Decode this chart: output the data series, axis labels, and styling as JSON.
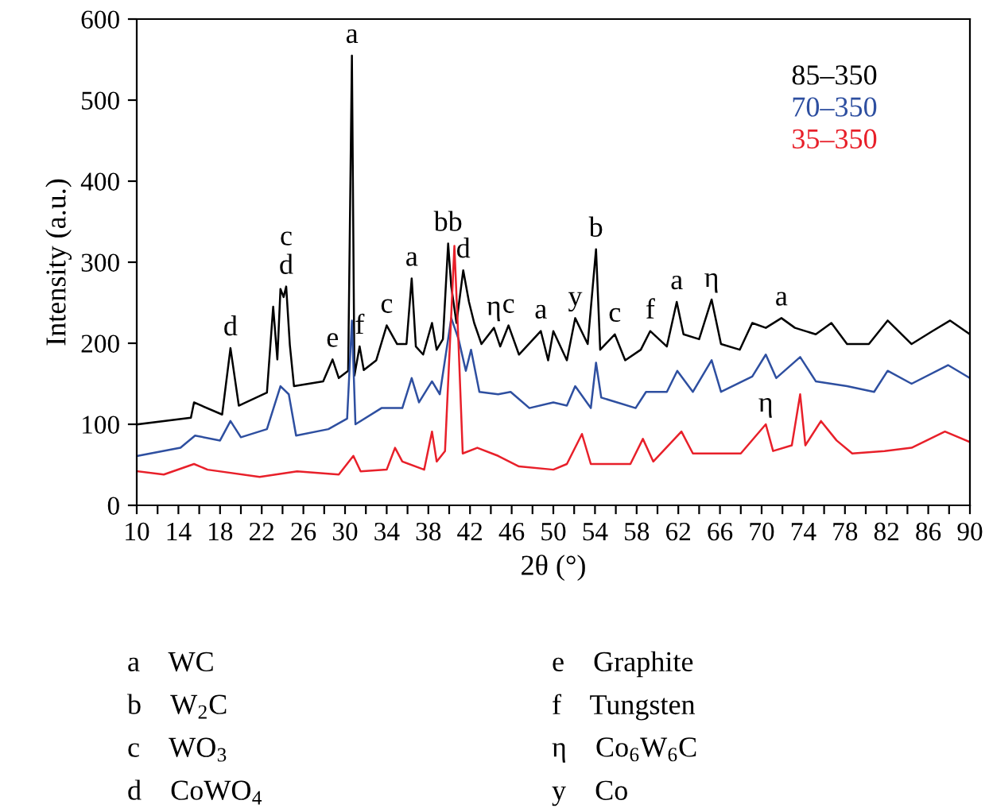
{
  "chart_data": {
    "type": "line",
    "xlabel": "2θ (°)",
    "ylabel": "Intensity (a.u.)",
    "xlim": [
      10,
      90
    ],
    "ylim": [
      0,
      600
    ],
    "xticks": [
      10,
      {
        "value": 12,
        "label": null
      },
      14,
      {
        "value": 16,
        "label": null
      },
      18,
      {
        "value": 20,
        "label": null
      },
      22,
      {
        "value": 24,
        "label": null
      },
      26,
      {
        "value": 28,
        "label": null
      },
      30,
      {
        "value": 32,
        "label": null
      },
      34,
      {
        "value": 36,
        "label": null
      },
      38,
      {
        "value": 40,
        "label": null
      },
      42,
      {
        "value": 44,
        "label": null
      },
      46,
      {
        "value": 48,
        "label": null
      },
      50,
      {
        "value": 52,
        "label": null
      },
      54,
      {
        "value": 56,
        "label": null
      },
      58,
      {
        "value": 60,
        "label": null
      },
      62,
      {
        "value": 64,
        "label": null
      },
      66,
      {
        "value": 68,
        "label": null
      },
      70,
      {
        "value": 72,
        "label": null
      },
      74,
      {
        "value": 76,
        "label": null
      },
      78,
      {
        "value": 80,
        "label": null
      },
      82,
      {
        "value": 84,
        "label": null
      },
      86,
      {
        "value": 88,
        "label": null
      },
      90
    ],
    "yticks": [
      0,
      100,
      200,
      300,
      400,
      500,
      600
    ],
    "grid": false,
    "legend": "top right",
    "marker": "none",
    "line_style": "solid",
    "series": [
      {
        "name": "85–350",
        "color": "#000000",
        "x": [
          10.1,
          15.2,
          15.5,
          18.2,
          19.0,
          19.8,
          22.5,
          23.1,
          23.5,
          23.8,
          24.1,
          24.35,
          24.7,
          25.1,
          27.9,
          28.8,
          29.4,
          30.3,
          30.66,
          30.9,
          31.4,
          31.8,
          33.0,
          34.0,
          35.0,
          35.9,
          36.4,
          36.8,
          37.5,
          38.35,
          38.8,
          39.4,
          39.9,
          40.2,
          40.7,
          41.35,
          41.9,
          42.4,
          43.1,
          44.3,
          44.9,
          45.7,
          46.7,
          48.8,
          49.5,
          50.0,
          51.3,
          52.1,
          53.3,
          54.1,
          54.5,
          55.9,
          56.9,
          58.4,
          59.3,
          60.9,
          61.85,
          62.5,
          64.0,
          65.2,
          66.1,
          67.9,
          69.1,
          70.4,
          71.9,
          73.2,
          75.2,
          76.7,
          78.2,
          80.3,
          82.1,
          84.4,
          86.4,
          88.1,
          90
        ],
        "values": [
          100,
          108,
          127,
          112,
          194,
          123,
          139,
          245,
          180,
          267,
          257,
          270,
          198,
          147,
          153,
          180,
          157,
          166,
          555,
          160,
          196,
          167,
          179,
          222,
          199,
          199,
          280,
          196,
          186,
          225,
          192,
          205,
          323,
          270,
          225,
          290,
          251,
          225,
          199,
          219,
          196,
          222,
          186,
          215,
          179,
          215,
          179,
          231,
          199,
          316,
          192,
          211,
          179,
          192,
          215,
          196,
          251,
          211,
          205,
          254,
          199,
          192,
          225,
          219,
          231,
          219,
          211,
          225,
          199,
          199,
          228,
          199,
          215,
          228,
          211
        ]
      },
      {
        "name": "70–350",
        "color": "#2e4fa0",
        "x": [
          10.1,
          14.2,
          15.6,
          18.0,
          19.0,
          20.0,
          22.5,
          23.8,
          24.6,
          25.3,
          28.4,
          30.2,
          30.66,
          31.0,
          33.5,
          35.5,
          36.4,
          37.1,
          38.35,
          39.1,
          40.2,
          40.9,
          41.6,
          42.1,
          42.9,
          44.7,
          45.9,
          47.7,
          50.0,
          51.3,
          52.1,
          53.6,
          54.1,
          54.6,
          57.9,
          58.9,
          60.9,
          61.9,
          63.4,
          65.2,
          66.1,
          69.1,
          70.4,
          71.4,
          73.7,
          75.2,
          78.2,
          80.8,
          82.1,
          84.4,
          87.9,
          90
        ],
        "values": [
          61,
          71,
          86,
          80,
          104,
          84,
          94,
          147,
          137,
          86,
          94,
          107,
          228,
          100,
          120,
          120,
          157,
          127,
          153,
          137,
          231,
          205,
          166,
          192,
          140,
          137,
          140,
          120,
          127,
          123,
          147,
          120,
          176,
          133,
          120,
          140,
          140,
          166,
          140,
          179,
          140,
          159,
          186,
          157,
          183,
          153,
          147,
          140,
          166,
          150,
          173,
          157
        ]
      },
      {
        "name": "35–350",
        "color": "#e8202a",
        "x": [
          10.1,
          12.6,
          15.5,
          16.8,
          21.8,
          25.4,
          29.4,
          30.8,
          31.5,
          34.0,
          34.8,
          35.5,
          37.6,
          38.35,
          38.8,
          39.6,
          40.5,
          40.9,
          41.3,
          42.7,
          44.7,
          46.7,
          50.0,
          51.3,
          52.75,
          53.6,
          57.4,
          58.6,
          59.6,
          62.3,
          63.4,
          68.0,
          70.4,
          71.1,
          72.9,
          73.7,
          74.2,
          75.7,
          77.2,
          78.7,
          81.8,
          84.4,
          87.6,
          90
        ],
        "values": [
          42,
          38,
          51,
          44,
          35,
          42,
          38,
          61,
          42,
          44,
          71,
          54,
          44,
          91,
          54,
          67,
          320,
          198,
          64,
          71,
          61,
          48,
          44,
          51,
          88,
          51,
          51,
          82,
          54,
          91,
          64,
          64,
          100,
          67,
          74,
          137,
          74,
          104,
          80,
          64,
          67,
          71,
          91,
          78
        ]
      }
    ],
    "annotations": [
      {
        "text": "d",
        "x": 19.0,
        "y": 194
      },
      {
        "text": "d",
        "x": 24.35,
        "y": 270
      },
      {
        "text": "c",
        "x": 24.35,
        "y": 270
      },
      {
        "text": "e",
        "x": 28.8,
        "y": 180
      },
      {
        "text": "a",
        "x": 30.66,
        "y": 555
      },
      {
        "text": "f",
        "x": 31.4,
        "y": 196
      },
      {
        "text": "c",
        "x": 34.0,
        "y": 222
      },
      {
        "text": "a",
        "x": 36.4,
        "y": 280
      },
      {
        "text": "bb",
        "x": 39.9,
        "y": 323
      },
      {
        "text": "d",
        "x": 41.35,
        "y": 290
      },
      {
        "text": "η",
        "x": 44.3,
        "y": 219
      },
      {
        "text": "c",
        "x": 45.7,
        "y": 222
      },
      {
        "text": "a",
        "x": 48.8,
        "y": 215
      },
      {
        "text": "y",
        "x": 52.1,
        "y": 231
      },
      {
        "text": "b",
        "x": 54.1,
        "y": 316
      },
      {
        "text": "c",
        "x": 55.9,
        "y": 211
      },
      {
        "text": "f",
        "x": 59.3,
        "y": 215
      },
      {
        "text": "a",
        "x": 61.85,
        "y": 251
      },
      {
        "text": "η",
        "x": 65.2,
        "y": 254
      },
      {
        "text": "a",
        "x": 71.9,
        "y": 231
      },
      {
        "text": "η",
        "x": 70.4,
        "y": 100
      },
      "a    WC",
      "b    W$_{2}$C",
      "c    WO$_{3}$",
      "d    CoWO$_{4}$",
      "e    Graphite",
      "f    Tungsten",
      "η    Co$_{6}$W$_{6}$C",
      "y    Co"
    ]
  }
}
